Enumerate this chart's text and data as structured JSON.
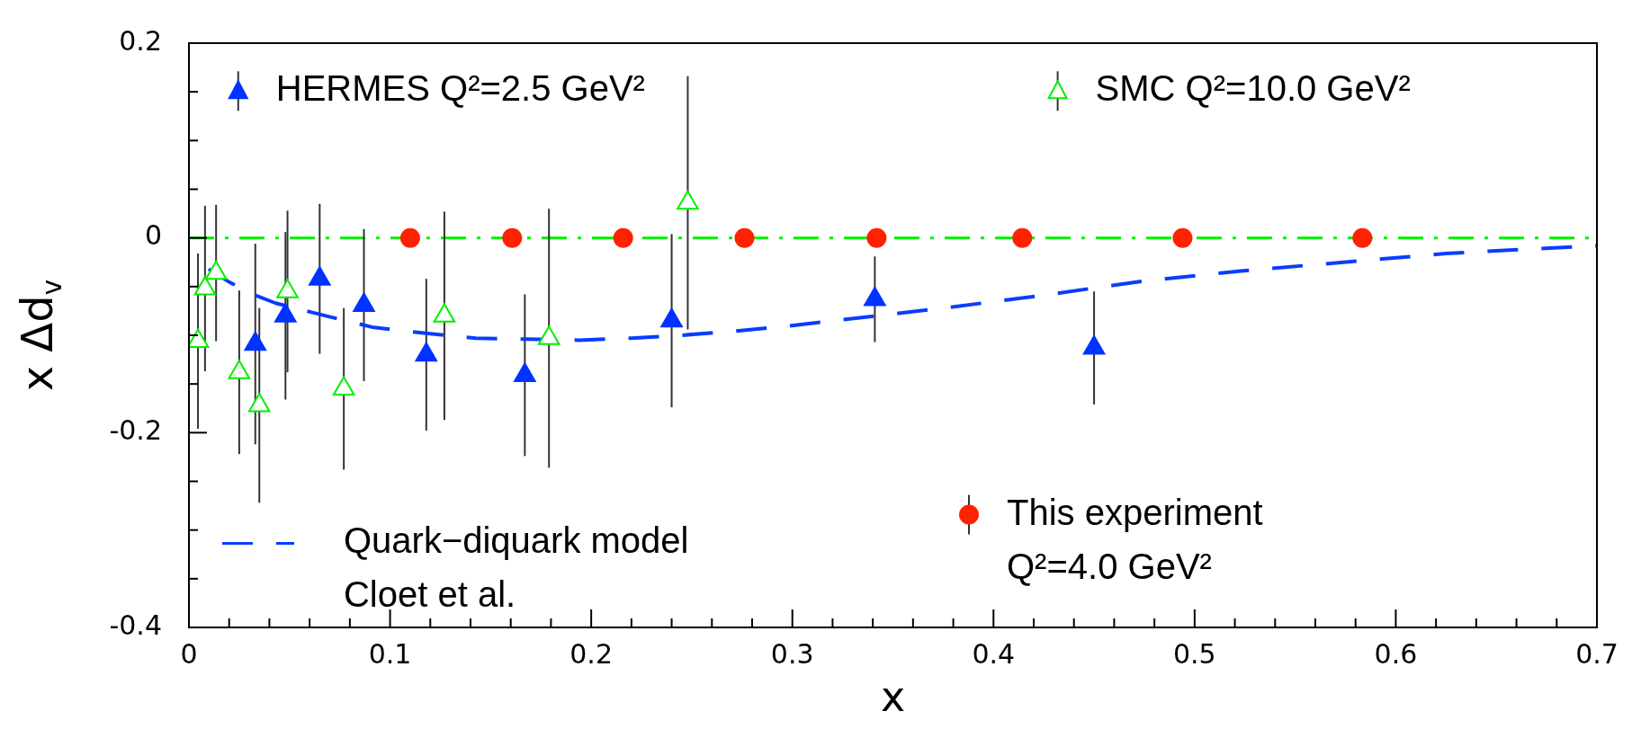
{
  "chart_data": {
    "type": "scatter",
    "xlabel": "x",
    "ylabel": "x Δd$_{v}$",
    "xlim": [
      0,
      0.7
    ],
    "xticks": [
      0,
      {
        "value": 0.02,
        "label": null
      },
      {
        "value": 0.04,
        "label": null
      },
      {
        "value": 0.06,
        "label": null
      },
      {
        "value": 0.08,
        "label": null
      },
      0.1,
      {
        "value": 0.12,
        "label": null
      },
      {
        "value": 0.14,
        "label": null
      },
      {
        "value": 0.16,
        "label": null
      },
      {
        "value": 0.18,
        "label": null
      },
      0.2,
      {
        "value": 0.22,
        "label": null
      },
      {
        "value": 0.24,
        "label": null
      },
      {
        "value": 0.26,
        "label": null
      },
      {
        "value": 0.28,
        "label": null
      },
      0.3,
      {
        "value": 0.32,
        "label": null
      },
      {
        "value": 0.34,
        "label": null
      },
      {
        "value": 0.36,
        "label": null
      },
      {
        "value": 0.38,
        "label": null
      },
      0.4,
      {
        "value": 0.42,
        "label": null
      },
      {
        "value": 0.44,
        "label": null
      },
      {
        "value": 0.46,
        "label": null
      },
      {
        "value": 0.48,
        "label": null
      },
      0.5,
      {
        "value": 0.52,
        "label": null
      },
      {
        "value": 0.54,
        "label": null
      },
      {
        "value": 0.56,
        "label": null
      },
      {
        "value": 0.58,
        "label": null
      },
      0.6,
      {
        "value": 0.62,
        "label": null
      },
      {
        "value": 0.64,
        "label": null
      },
      {
        "value": 0.66,
        "label": null
      },
      {
        "value": 0.68,
        "label": null
      },
      0.7
    ],
    "ylim": [
      -0.4,
      0.2
    ],
    "yticks": [
      -0.4,
      {
        "value": -0.35,
        "label": null
      },
      {
        "value": -0.3,
        "label": null
      },
      {
        "value": -0.25,
        "label": null
      },
      -0.2,
      {
        "value": -0.15,
        "label": null
      },
      {
        "value": -0.1,
        "label": null
      },
      {
        "value": -0.05,
        "label": null
      },
      0,
      {
        "value": 0.05,
        "label": null
      },
      {
        "value": 0.1,
        "label": null
      },
      {
        "value": 0.15,
        "label": null
      },
      0.2
    ],
    "grid": false,
    "legend": "center",
    "ref_lines": [
      {
        "axis": "y",
        "value": 0,
        "color": "#00ee00",
        "line_style": "dashed"
      }
    ],
    "series": [
      {
        "name": "HERMES Q²=2.5 GeV²",
        "type": "scatter",
        "marker": "triangle",
        "color": "#0033ff",
        "x": [
          0.033,
          0.048,
          0.065,
          0.087,
          0.118,
          0.167,
          0.24,
          0.341,
          0.45
        ],
        "values": [
          -0.109,
          -0.08,
          -0.042,
          -0.069,
          -0.12,
          -0.141,
          -0.085,
          -0.063,
          -0.113
        ],
        "errors": [
          0.103,
          0.086,
          0.077,
          0.078,
          0.078,
          0.083,
          0.089,
          0.044,
          0.058
        ]
      },
      {
        "name": "SMC Q²=10.0 GeV²",
        "type": "scatter",
        "marker": "triangle-open",
        "color": "#00ee00",
        "x": [
          0.0045,
          0.008,
          0.0135,
          0.025,
          0.035,
          0.049,
          0.077,
          0.127,
          0.179,
          0.248
        ],
        "values": [
          -0.106,
          -0.052,
          -0.036,
          -0.138,
          -0.172,
          -0.055,
          -0.155,
          -0.08,
          -0.103,
          0.036
        ],
        "errors": [
          0.09,
          0.085,
          0.07,
          0.084,
          0.1,
          0.083,
          0.083,
          0.107,
          0.133,
          0.13
        ]
      },
      {
        "name": "Quark−diquark model\nCloet et al.",
        "type": "line",
        "marker": "none",
        "line_style": "dashed",
        "color": "#0a3cff",
        "x": [
          0.0098,
          0.0198,
          0.0318,
          0.0431,
          0.068,
          0.092,
          0.118,
          0.1426,
          0.168,
          0.194,
          0.2197,
          0.2447,
          0.27,
          0.2957,
          0.3209,
          0.346,
          0.3714,
          0.421,
          0.472,
          0.523,
          0.574,
          0.625,
          0.7
        ],
        "values": [
          -0.032,
          -0.045,
          -0.058,
          -0.067,
          -0.08,
          -0.092,
          -0.098,
          -0.103,
          -0.104,
          -0.105,
          -0.103,
          -0.1,
          -0.096,
          -0.091,
          -0.085,
          -0.079,
          -0.073,
          -0.06,
          -0.045,
          -0.034,
          -0.025,
          -0.016,
          -0.008
        ]
      },
      {
        "name": "This experiment\nQ²=4.0 GeV²",
        "type": "scatter",
        "marker": "circle",
        "color": "#ff2200",
        "x": [
          0.11,
          0.1607,
          0.2159,
          0.2762,
          0.3419,
          0.4143,
          0.494,
          0.5834
        ],
        "values": [
          0,
          0,
          0,
          0,
          0,
          0,
          0,
          0
        ]
      }
    ]
  }
}
